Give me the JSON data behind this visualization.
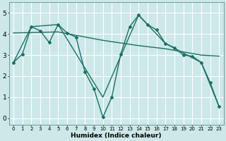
{
  "xlabel": "Humidex (Indice chaleur)",
  "background_color": "#cce8e8",
  "line_color": "#1a6e64",
  "grid_color": "#b0d8d8",
  "xlim": [
    -0.5,
    23.5
  ],
  "ylim": [
    -0.3,
    5.5
  ],
  "xticks": [
    0,
    1,
    2,
    3,
    4,
    5,
    6,
    7,
    8,
    9,
    10,
    11,
    12,
    13,
    14,
    15,
    16,
    17,
    18,
    19,
    20,
    21,
    22,
    23
  ],
  "yticks": [
    0,
    1,
    2,
    3,
    4,
    5
  ],
  "line1_x": [
    0,
    1,
    2,
    3,
    4,
    5,
    6,
    7,
    8,
    9,
    10,
    11,
    12,
    13,
    14,
    15,
    16,
    17,
    18,
    19,
    20,
    21,
    22,
    23
  ],
  "line1_y": [
    2.65,
    3.05,
    4.35,
    4.15,
    3.6,
    4.45,
    4.05,
    3.85,
    2.2,
    1.4,
    0.05,
    1.0,
    3.05,
    4.35,
    4.9,
    4.45,
    4.2,
    3.55,
    3.35,
    3.0,
    2.95,
    2.65,
    1.7,
    0.55
  ],
  "line2_x": [
    0,
    2,
    5,
    10,
    14,
    17,
    21,
    23
  ],
  "line2_y": [
    2.65,
    4.35,
    4.45,
    1.0,
    4.9,
    3.55,
    2.65,
    0.55
  ],
  "line3_x": [
    0,
    5,
    10,
    14,
    17,
    21,
    23
  ],
  "line3_y": [
    4.05,
    4.1,
    3.7,
    3.45,
    3.3,
    3.0,
    2.95
  ]
}
